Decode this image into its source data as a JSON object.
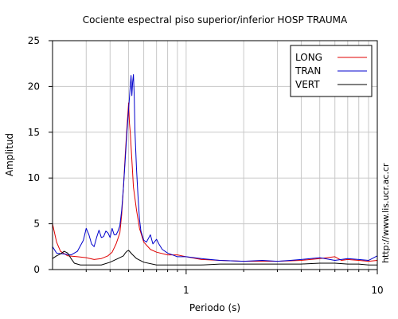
{
  "chart_data": {
    "type": "line",
    "title": "Cociente espectral piso superior/inferior  HOSP TRAUMA",
    "xlabel": "Periodo (s)",
    "ylabel": "Amplitud",
    "x_scale": "log",
    "xlim": [
      0.2,
      10
    ],
    "ylim": [
      0,
      25
    ],
    "x_tick_labels": [
      "1",
      "10"
    ],
    "x_major_ticks": [
      1,
      10
    ],
    "x_minor_ticks": [
      0.3,
      0.4,
      0.5,
      0.6,
      0.7,
      0.8,
      0.9,
      2,
      3,
      4,
      5,
      6,
      7,
      8,
      9
    ],
    "y_ticks": [
      0,
      5,
      10,
      15,
      20,
      25
    ],
    "grid": true,
    "legend_position": "top-right",
    "side_note": "http://www.lis.ucr.ac.cr",
    "series": [
      {
        "name": "LONG",
        "color": "#e00000",
        "points": [
          [
            0.2,
            5.0
          ],
          [
            0.21,
            3.0
          ],
          [
            0.22,
            2.0
          ],
          [
            0.24,
            1.5
          ],
          [
            0.27,
            1.4
          ],
          [
            0.3,
            1.3
          ],
          [
            0.33,
            1.1
          ],
          [
            0.36,
            1.2
          ],
          [
            0.39,
            1.5
          ],
          [
            0.41,
            1.9
          ],
          [
            0.43,
            2.8
          ],
          [
            0.45,
            4.0
          ],
          [
            0.46,
            6.0
          ],
          [
            0.47,
            9.0
          ],
          [
            0.48,
            12.5
          ],
          [
            0.49,
            15.5
          ],
          [
            0.5,
            18.2
          ],
          [
            0.505,
            16.0
          ],
          [
            0.51,
            15.0
          ],
          [
            0.52,
            12.0
          ],
          [
            0.53,
            9.0
          ],
          [
            0.55,
            6.5
          ],
          [
            0.57,
            4.5
          ],
          [
            0.6,
            3.0
          ],
          [
            0.65,
            2.2
          ],
          [
            0.7,
            1.9
          ],
          [
            0.8,
            1.6
          ],
          [
            0.9,
            1.6
          ],
          [
            1.0,
            1.4
          ],
          [
            1.2,
            1.1
          ],
          [
            1.5,
            1.0
          ],
          [
            2.0,
            0.9
          ],
          [
            3.0,
            0.9
          ],
          [
            4.0,
            1.0
          ],
          [
            5.0,
            1.2
          ],
          [
            6.0,
            1.4
          ],
          [
            6.5,
            1.0
          ],
          [
            7.0,
            1.1
          ],
          [
            8.0,
            1.0
          ],
          [
            9.0,
            0.9
          ],
          [
            10.0,
            1.0
          ]
        ]
      },
      {
        "name": "TRAN",
        "color": "#0000cc",
        "points": [
          [
            0.2,
            2.5
          ],
          [
            0.21,
            1.8
          ],
          [
            0.23,
            1.7
          ],
          [
            0.25,
            1.6
          ],
          [
            0.27,
            2.0
          ],
          [
            0.29,
            3.2
          ],
          [
            0.3,
            4.5
          ],
          [
            0.31,
            3.8
          ],
          [
            0.32,
            2.8
          ],
          [
            0.33,
            2.5
          ],
          [
            0.34,
            3.5
          ],
          [
            0.35,
            4.3
          ],
          [
            0.36,
            3.5
          ],
          [
            0.37,
            3.6
          ],
          [
            0.38,
            4.2
          ],
          [
            0.39,
            4.0
          ],
          [
            0.4,
            3.5
          ],
          [
            0.41,
            4.5
          ],
          [
            0.42,
            3.8
          ],
          [
            0.43,
            3.8
          ],
          [
            0.44,
            4.2
          ],
          [
            0.45,
            4.8
          ],
          [
            0.46,
            6.5
          ],
          [
            0.47,
            9.0
          ],
          [
            0.48,
            12.0
          ],
          [
            0.49,
            15.0
          ],
          [
            0.5,
            17.5
          ],
          [
            0.51,
            20.0
          ],
          [
            0.515,
            21.2
          ],
          [
            0.52,
            19.0
          ],
          [
            0.525,
            20.5
          ],
          [
            0.53,
            21.3
          ],
          [
            0.535,
            19.0
          ],
          [
            0.54,
            15.0
          ],
          [
            0.55,
            11.0
          ],
          [
            0.56,
            8.0
          ],
          [
            0.57,
            5.5
          ],
          [
            0.58,
            4.2
          ],
          [
            0.6,
            3.2
          ],
          [
            0.62,
            3.0
          ],
          [
            0.65,
            3.8
          ],
          [
            0.67,
            2.8
          ],
          [
            0.7,
            3.3
          ],
          [
            0.72,
            2.8
          ],
          [
            0.75,
            2.2
          ],
          [
            0.8,
            1.8
          ],
          [
            0.9,
            1.4
          ],
          [
            1.0,
            1.4
          ],
          [
            1.2,
            1.2
          ],
          [
            1.5,
            1.0
          ],
          [
            2.0,
            0.9
          ],
          [
            2.5,
            1.0
          ],
          [
            3.0,
            0.9
          ],
          [
            3.5,
            1.0
          ],
          [
            4.0,
            1.1
          ],
          [
            5.0,
            1.3
          ],
          [
            6.0,
            1.0
          ],
          [
            7.0,
            1.2
          ],
          [
            8.0,
            1.1
          ],
          [
            9.0,
            1.0
          ],
          [
            10.0,
            1.5
          ]
        ]
      },
      {
        "name": "VERT",
        "color": "#000000",
        "points": [
          [
            0.2,
            1.2
          ],
          [
            0.21,
            1.5
          ],
          [
            0.22,
            1.7
          ],
          [
            0.23,
            2.0
          ],
          [
            0.24,
            1.8
          ],
          [
            0.25,
            1.2
          ],
          [
            0.26,
            0.7
          ],
          [
            0.28,
            0.5
          ],
          [
            0.3,
            0.5
          ],
          [
            0.33,
            0.5
          ],
          [
            0.36,
            0.5
          ],
          [
            0.4,
            0.8
          ],
          [
            0.44,
            1.2
          ],
          [
            0.47,
            1.5
          ],
          [
            0.48,
            1.8
          ],
          [
            0.49,
            2.0
          ],
          [
            0.5,
            2.1
          ],
          [
            0.52,
            1.7
          ],
          [
            0.55,
            1.2
          ],
          [
            0.6,
            0.8
          ],
          [
            0.7,
            0.5
          ],
          [
            0.8,
            0.5
          ],
          [
            0.9,
            0.5
          ],
          [
            1.0,
            0.5
          ],
          [
            1.2,
            0.5
          ],
          [
            1.5,
            0.6
          ],
          [
            2.0,
            0.6
          ],
          [
            3.0,
            0.6
          ],
          [
            4.0,
            0.6
          ],
          [
            5.0,
            0.7
          ],
          [
            6.0,
            0.7
          ],
          [
            7.0,
            0.6
          ],
          [
            8.0,
            0.6
          ],
          [
            9.0,
            0.5
          ],
          [
            10.0,
            0.5
          ]
        ]
      }
    ]
  }
}
